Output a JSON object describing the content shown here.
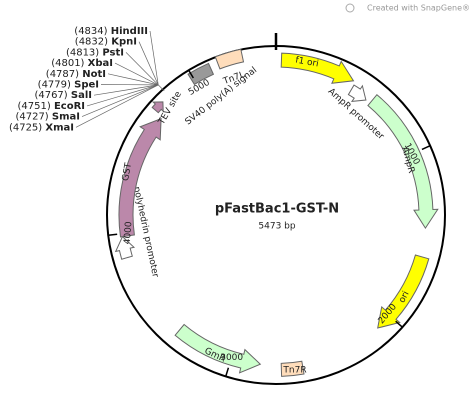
{
  "title": "pFastBac1-GST-N",
  "length": "5473 bp",
  "watermark": "Created with SnapGene®",
  "ticks": [
    1000,
    2000,
    3000,
    4000,
    5000
  ],
  "features": [
    {
      "label": "f1 ori"
    },
    {
      "label": "AmpR promoter"
    },
    {
      "label": "AmpR"
    },
    {
      "label": "ori"
    },
    {
      "label": "Tn7R"
    },
    {
      "label": "GmR"
    },
    {
      "label": "polyhedrin promoter"
    },
    {
      "label": "GST"
    },
    {
      "label": "TEV site"
    },
    {
      "label": "SV40 poly(A) signal"
    },
    {
      "label": "Tn7L"
    }
  ],
  "sites": [
    {
      "position": "(4834)",
      "name": "HindIII"
    },
    {
      "position": "(4832)",
      "name": "KpnI"
    },
    {
      "position": "(4813)",
      "name": "PstI"
    },
    {
      "position": "(4801)",
      "name": "XbaI"
    },
    {
      "position": "(4787)",
      "name": "NotI"
    },
    {
      "position": "(4779)",
      "name": "SpeI"
    },
    {
      "position": "(4767)",
      "name": "SalI"
    },
    {
      "position": "(4751)",
      "name": "EcoRI"
    },
    {
      "position": "(4727)",
      "name": "SmaI"
    },
    {
      "position": "(4725)",
      "name": "XmaI"
    }
  ]
}
